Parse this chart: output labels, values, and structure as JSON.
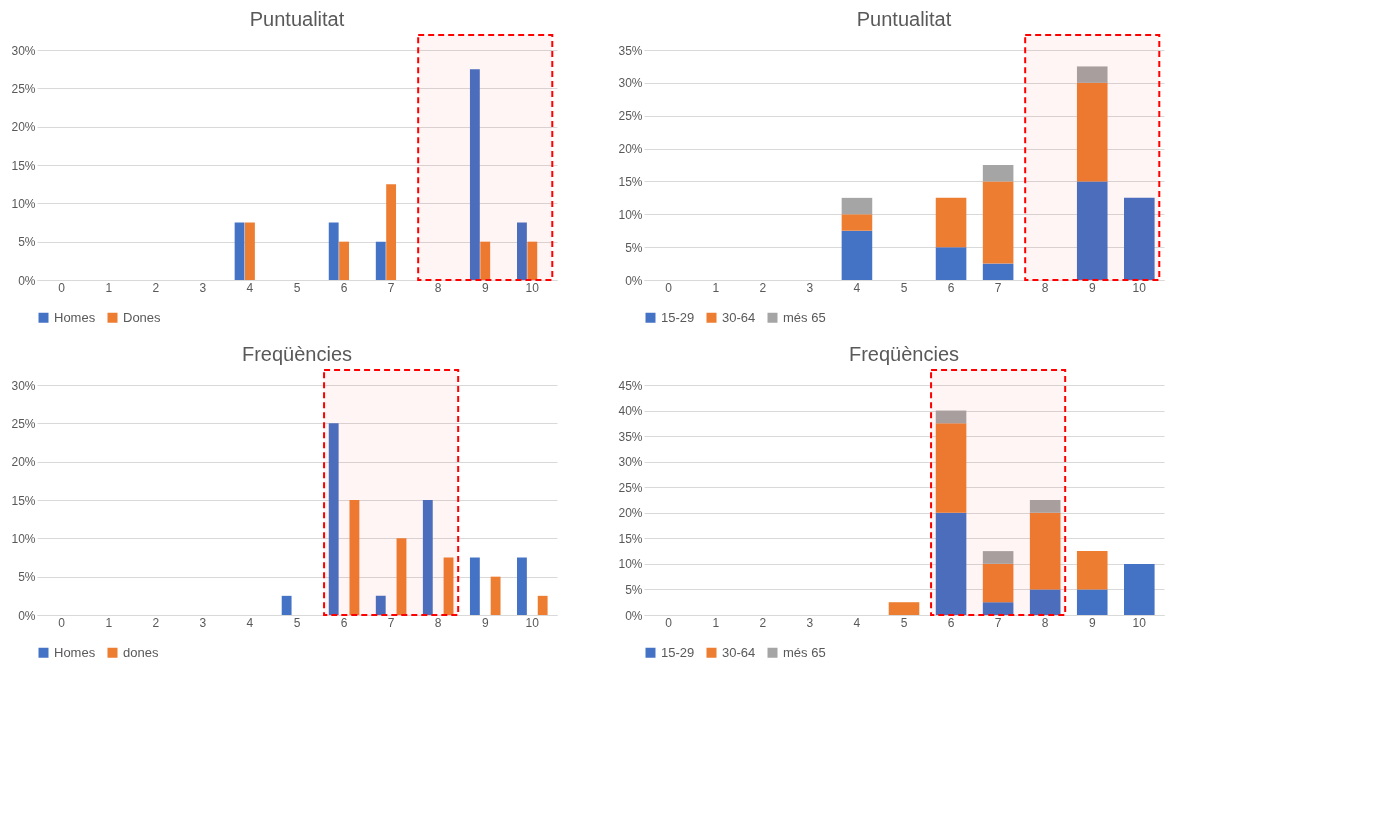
{
  "chart_data": [
    {
      "type": "bar",
      "title": "Puntualitat",
      "categories": [
        "0",
        "1",
        "2",
        "3",
        "4",
        "5",
        "6",
        "7",
        "8",
        "9",
        "10"
      ],
      "series": [
        {
          "name": "Homes",
          "color": "#4472c4",
          "values": [
            0,
            0,
            0,
            0,
            7.5,
            0,
            7.5,
            5,
            0,
            27.5,
            7.5
          ]
        },
        {
          "name": "Dones",
          "color": "#ed7d31",
          "values": [
            0,
            0,
            0,
            0,
            7.5,
            0,
            5,
            12.5,
            0,
            5,
            5
          ]
        }
      ],
      "ylim": [
        0,
        30
      ],
      "yticks": [
        {
          "value": 0,
          "label": "0%"
        },
        {
          "value": 5,
          "label": "5%"
        },
        {
          "value": 10,
          "label": "10%"
        },
        {
          "value": 15,
          "label": "15%"
        },
        {
          "value": 20,
          "label": "20%"
        },
        {
          "value": 25,
          "label": "25%"
        },
        {
          "value": 30,
          "label": "30%"
        }
      ],
      "grid": "y",
      "legend": "bottom",
      "bands": [
        {
          "axis": "x",
          "from": "8",
          "to": "10",
          "color": "#ff0000"
        }
      ]
    },
    {
      "type": "bar",
      "title": "Puntualitat",
      "stacked": true,
      "categories": [
        "0",
        "1",
        "2",
        "3",
        "4",
        "5",
        "6",
        "7",
        "8",
        "9",
        "10"
      ],
      "series": [
        {
          "name": "15-29",
          "color": "#4472c4",
          "values": [
            0,
            0,
            0,
            0,
            7.5,
            0,
            5,
            2.5,
            0,
            15,
            12.5
          ]
        },
        {
          "name": "30-64",
          "color": "#ed7d31",
          "values": [
            0,
            0,
            0,
            0,
            2.5,
            0,
            7.5,
            12.5,
            0,
            15,
            0
          ]
        },
        {
          "name": "més 65",
          "color": "#a5a5a5",
          "values": [
            0,
            0,
            0,
            0,
            2.5,
            0,
            0,
            2.5,
            0,
            2.5,
            0
          ]
        }
      ],
      "ylim": [
        0,
        35
      ],
      "yticks": [
        {
          "value": 0,
          "label": "0%"
        },
        {
          "value": 5,
          "label": "5%"
        },
        {
          "value": 10,
          "label": "10%"
        },
        {
          "value": 15,
          "label": "15%"
        },
        {
          "value": 20,
          "label": "20%"
        },
        {
          "value": 25,
          "label": "25%"
        },
        {
          "value": 30,
          "label": "30%"
        },
        {
          "value": 35,
          "label": "35%"
        }
      ],
      "grid": "y",
      "legend": "bottom",
      "bands": [
        {
          "axis": "x",
          "from": "8",
          "to": "10",
          "color": "#ff0000"
        }
      ]
    },
    {
      "type": "bar",
      "title": "Freqüències",
      "categories": [
        "0",
        "1",
        "2",
        "3",
        "4",
        "5",
        "6",
        "7",
        "8",
        "9",
        "10"
      ],
      "series": [
        {
          "name": "Homes",
          "color": "#4472c4",
          "values": [
            0,
            0,
            0,
            0,
            0,
            2.5,
            25,
            2.5,
            15,
            7.5,
            7.5
          ]
        },
        {
          "name": "dones",
          "color": "#ed7d31",
          "values": [
            0,
            0,
            0,
            0,
            0,
            0,
            15,
            10,
            7.5,
            5,
            2.5
          ]
        }
      ],
      "ylim": [
        0,
        30
      ],
      "yticks": [
        {
          "value": 0,
          "label": "0%"
        },
        {
          "value": 5,
          "label": "5%"
        },
        {
          "value": 10,
          "label": "10%"
        },
        {
          "value": 15,
          "label": "15%"
        },
        {
          "value": 20,
          "label": "20%"
        },
        {
          "value": 25,
          "label": "25%"
        },
        {
          "value": 30,
          "label": "30%"
        }
      ],
      "grid": "y",
      "legend": "bottom",
      "bands": [
        {
          "axis": "x",
          "from": "6",
          "to": "8",
          "color": "#ff0000"
        }
      ]
    },
    {
      "type": "bar",
      "title": "Freqüències",
      "stacked": true,
      "categories": [
        "0",
        "1",
        "2",
        "3",
        "4",
        "5",
        "6",
        "7",
        "8",
        "9",
        "10"
      ],
      "series": [
        {
          "name": "15-29",
          "color": "#4472c4",
          "values": [
            0,
            0,
            0,
            0,
            0,
            0,
            20,
            2.5,
            5,
            5,
            10
          ]
        },
        {
          "name": "30-64",
          "color": "#ed7d31",
          "values": [
            0,
            0,
            0,
            0,
            0,
            2.5,
            17.5,
            7.5,
            15,
            7.5,
            0
          ]
        },
        {
          "name": "més 65",
          "color": "#a5a5a5",
          "values": [
            0,
            0,
            0,
            0,
            0,
            0,
            2.5,
            2.5,
            2.5,
            0,
            0
          ]
        }
      ],
      "ylim": [
        0,
        45
      ],
      "yticks": [
        {
          "value": 0,
          "label": "0%"
        },
        {
          "value": 5,
          "label": "5%"
        },
        {
          "value": 10,
          "label": "10%"
        },
        {
          "value": 15,
          "label": "15%"
        },
        {
          "value": 20,
          "label": "20%"
        },
        {
          "value": 25,
          "label": "25%"
        },
        {
          "value": 30,
          "label": "30%"
        },
        {
          "value": 35,
          "label": "35%"
        },
        {
          "value": 40,
          "label": "40%"
        },
        {
          "value": 45,
          "label": "45%"
        }
      ],
      "grid": "y",
      "legend": "bottom",
      "bands": [
        {
          "axis": "x",
          "from": "6",
          "to": "8",
          "color": "#ff0000"
        }
      ]
    }
  ]
}
